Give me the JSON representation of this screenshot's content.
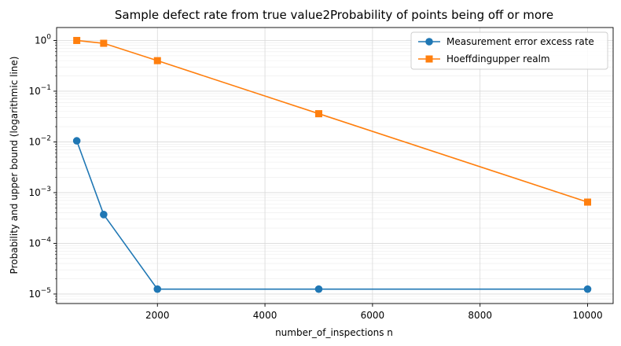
{
  "chart_data": {
    "type": "line",
    "title": "Sample defect rate from true value2Probability of points being off or more",
    "xlabel": "number_of_inspections n",
    "ylabel": "Probability and upper bound (logarithmic line)",
    "x_scale": "linear",
    "y_scale": "log",
    "xlim": [
      125,
      10475
    ],
    "ylim": [
      6.5e-06,
      1.8
    ],
    "x_ticks": [
      2000,
      4000,
      6000,
      8000,
      10000
    ],
    "x_tick_labels": [
      "2000",
      "4000",
      "6000",
      "8000",
      "10000"
    ],
    "y_ticks": [
      1e-05,
      0.0001,
      0.001,
      0.01,
      0.1,
      1
    ],
    "y_tick_labels": [
      {
        "base": "10",
        "exp": "−5"
      },
      {
        "base": "10",
        "exp": "−4"
      },
      {
        "base": "10",
        "exp": "−3"
      },
      {
        "base": "10",
        "exp": "−2"
      },
      {
        "base": "10",
        "exp": "−1"
      },
      {
        "base": "10",
        "exp": "0"
      }
    ],
    "grid": true,
    "legend_position": "top-right",
    "series": [
      {
        "name": "Measurement error excess rate",
        "color": "#1f77b4",
        "marker": "circle",
        "x": [
          500,
          1000,
          2000,
          5000,
          10000
        ],
        "y": [
          0.0105,
          0.00037,
          1.25e-05,
          1.25e-05,
          1.25e-05
        ]
      },
      {
        "name": "Hoeffdingupper realm",
        "color": "#ff7f0e",
        "marker": "square",
        "x": [
          500,
          1000,
          2000,
          5000,
          10000
        ],
        "y": [
          1.0,
          0.88,
          0.4,
          0.036,
          0.00065
        ]
      }
    ]
  }
}
